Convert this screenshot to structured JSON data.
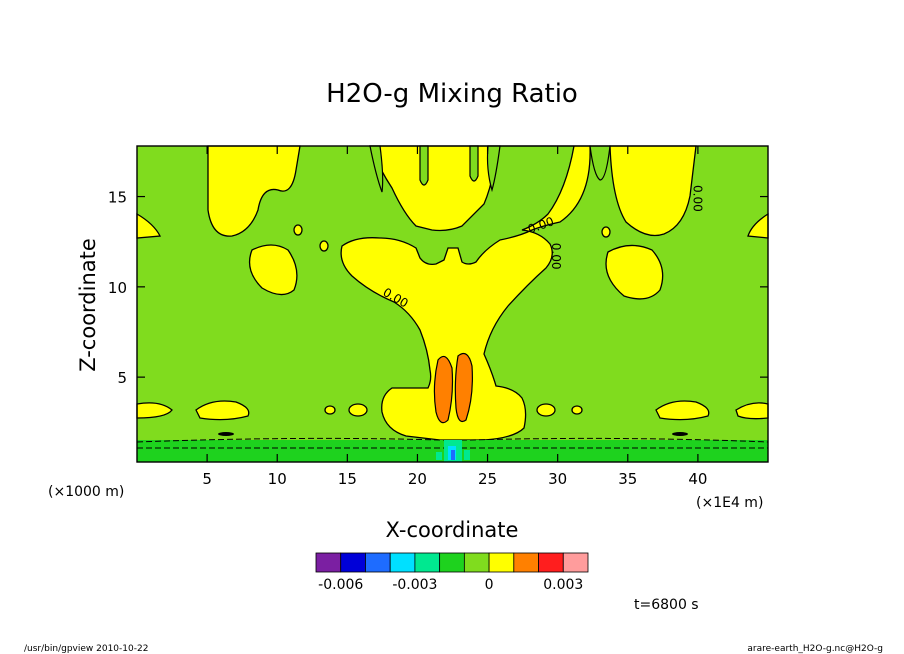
{
  "chart_data": {
    "type": "heatmap",
    "title": "H2O-g Mixing Ratio",
    "xlabel": "X-coordinate",
    "ylabel": "Z-coordinate",
    "x_unit_left": "(×1000 m)",
    "x_unit_right": "(×1E4 m)",
    "xlim": [
      0,
      45
    ],
    "ylim": [
      0.3,
      17.8
    ],
    "x_ticks": [
      5,
      10,
      15,
      20,
      25,
      30,
      35,
      40
    ],
    "y_ticks": [
      5,
      10,
      15
    ],
    "contour_labels": [
      {
        "text": "0.00",
        "x": 28.9,
        "z": 13.2
      },
      {
        "text": "0.00",
        "x": 29.6,
        "z": 11.7
      },
      {
        "text": "0.00",
        "x": 39.7,
        "z": 14.9
      },
      {
        "text": "0.00",
        "x": 18.3,
        "z": 9.2
      }
    ],
    "colorbar": {
      "colors": [
        "#7b1fa2",
        "#0000d8",
        "#1e6cff",
        "#00e0ff",
        "#00e890",
        "#1ed21e",
        "#80dc1e",
        "#ffff00",
        "#ff8000",
        "#ff1e1e",
        "#ff9c9c"
      ],
      "tick_labels": [
        "-0.006",
        "-0.003",
        "0",
        "0.003"
      ]
    },
    "time_label": "t=6800 s"
  },
  "footer": {
    "left": "/usr/bin/gpview   2010-10-22",
    "right": "arare-earth_H2O-g.nc@H2O-g"
  }
}
